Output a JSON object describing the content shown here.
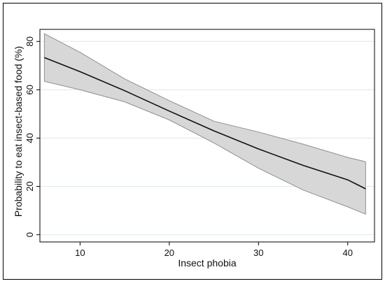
{
  "chart_data": {
    "type": "line",
    "title": "",
    "xlabel": "Insect phobia",
    "ylabel": "Probability to eat insect-based food (%)",
    "xlim": [
      5.5,
      43
    ],
    "ylim": [
      -3,
      85
    ],
    "x_ticks": [
      10,
      20,
      30,
      40
    ],
    "y_ticks": [
      0,
      20,
      40,
      60,
      80
    ],
    "grid": true,
    "legend": "none",
    "series": [
      {
        "x": [
          6,
          10,
          15,
          20,
          25,
          30,
          35,
          40,
          42
        ],
        "y": [
          73.3,
          67.5,
          59.6,
          51.2,
          43.0,
          35.5,
          28.7,
          22.7,
          19.0
        ],
        "lower": [
          63.5,
          60.0,
          55.0,
          47.5,
          38.0,
          27.5,
          18.5,
          11.5,
          8.5
        ],
        "upper": [
          83.2,
          75.5,
          64.5,
          55.5,
          47.0,
          42.5,
          37.5,
          32.0,
          30.2
        ]
      }
    ],
    "colors": {
      "line": "#111111",
      "band_fill": "#d7d7d7",
      "band_stroke": "#8f8f8f",
      "grid": "#dde9ec",
      "frame": "#000000"
    }
  }
}
